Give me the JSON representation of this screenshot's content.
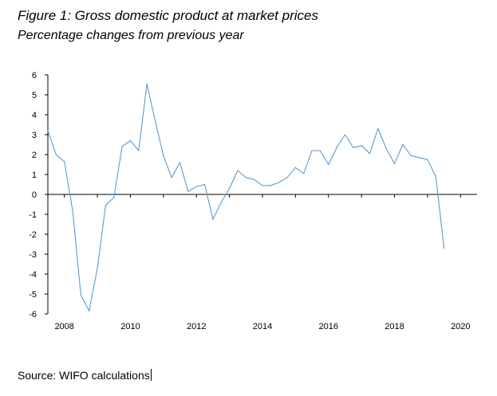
{
  "figure": {
    "title": "Figure 1: Gross domestic product at market prices",
    "subtitle": "Percentage changes from previous year"
  },
  "source": "Source: WIFO calculations",
  "chart_data": {
    "type": "line",
    "title": "",
    "xlabel": "",
    "ylabel": "",
    "xlim": [
      2007.5,
      2020.5
    ],
    "ylim": [
      -6,
      6
    ],
    "y_ticks": [
      6,
      5,
      4,
      3,
      2,
      1,
      0,
      -1,
      -2,
      -3,
      -4,
      -5,
      -6
    ],
    "y_tick_labels": [
      "6",
      "5",
      "4",
      "3",
      "2",
      "1",
      "0",
      "-1",
      "-2",
      "-3",
      "-4",
      "-5",
      "-6"
    ],
    "x_ticks": [
      2008,
      2010,
      2012,
      2014,
      2016,
      2018,
      2020
    ],
    "x_tick_labels": [
      "2008",
      "2010",
      "2012",
      "2014",
      "2016",
      "2018",
      "2020"
    ],
    "grid": false,
    "line_color": "#5b9bd5",
    "series": [
      {
        "x": [
          2007.5,
          2007.75,
          2008.0,
          2008.25,
          2008.5,
          2008.75,
          2009.0,
          2009.25,
          2009.5,
          2009.75,
          2010.0,
          2010.25,
          2010.5,
          2010.75,
          2011.0,
          2011.25,
          2011.5,
          2011.75,
          2012.0,
          2012.25,
          2012.5,
          2012.75,
          2013.0,
          2013.25,
          2013.5,
          2013.75,
          2014.0,
          2014.25,
          2014.5,
          2014.75,
          2015.0,
          2015.25,
          2015.5,
          2015.75,
          2016.0,
          2016.25,
          2016.5,
          2016.75,
          2017.0,
          2017.25,
          2017.5,
          2017.75,
          2018.0,
          2018.25,
          2018.5,
          2018.75,
          2019.0,
          2019.25,
          2019.5
        ],
        "y": [
          3.2,
          2.0,
          1.65,
          -0.8,
          -5.05,
          -5.85,
          -3.7,
          -0.55,
          -0.15,
          2.4,
          2.7,
          2.2,
          5.55,
          3.7,
          1.95,
          0.85,
          1.6,
          0.15,
          0.4,
          0.5,
          -1.25,
          -0.4,
          0.3,
          1.2,
          0.85,
          0.75,
          0.45,
          0.45,
          0.6,
          0.85,
          1.35,
          1.05,
          2.2,
          2.2,
          1.5,
          2.35,
          3.0,
          2.35,
          2.45,
          2.05,
          3.3,
          2.3,
          1.55,
          2.5,
          1.95,
          1.85,
          1.75,
          0.9,
          -2.7
        ]
      }
    ]
  }
}
